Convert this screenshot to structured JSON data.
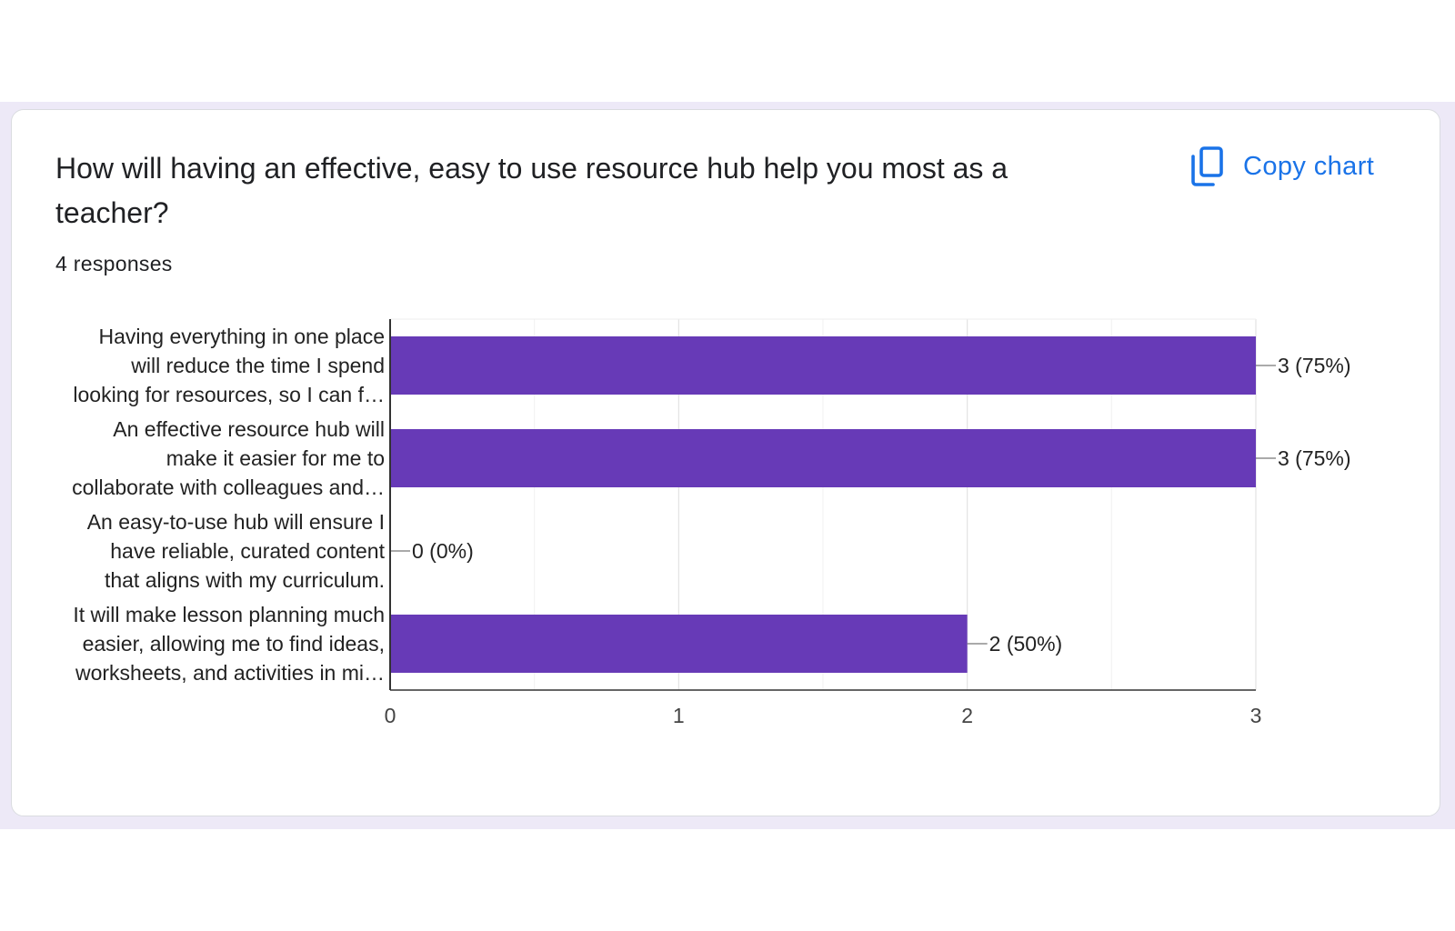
{
  "card": {
    "title": "How will having an effective, easy to use resource hub help you most as a teacher?",
    "response_count": "4 responses",
    "copy_chart_label": "Copy chart",
    "copy_icon": "copy-icon"
  },
  "colors": {
    "bar": "#673ab7",
    "accent": "#1a73e8",
    "background_band": "#ede9f7"
  },
  "chart_data": {
    "type": "bar",
    "orientation": "horizontal",
    "categories": [
      [
        "Having everything in one place",
        "will reduce the time I spend",
        "looking for resources, so I can f…"
      ],
      [
        "An effective resource hub will",
        "make it easier for me to",
        "collaborate with colleagues and…"
      ],
      [
        "An easy-to-use hub will ensure I",
        "have reliable, curated content",
        "that aligns with my curriculum."
      ],
      [
        "It will make lesson planning much",
        "easier, allowing me to find ideas,",
        "worksheets, and activities in mi…"
      ]
    ],
    "values": [
      3,
      3,
      0,
      2
    ],
    "data_labels": [
      "3 (75%)",
      "3 (75%)",
      "0 (0%)",
      "2 (50%)"
    ],
    "xlim": [
      0,
      3
    ],
    "xticks": [
      "0",
      "1",
      "2",
      "3"
    ],
    "grid": true
  }
}
